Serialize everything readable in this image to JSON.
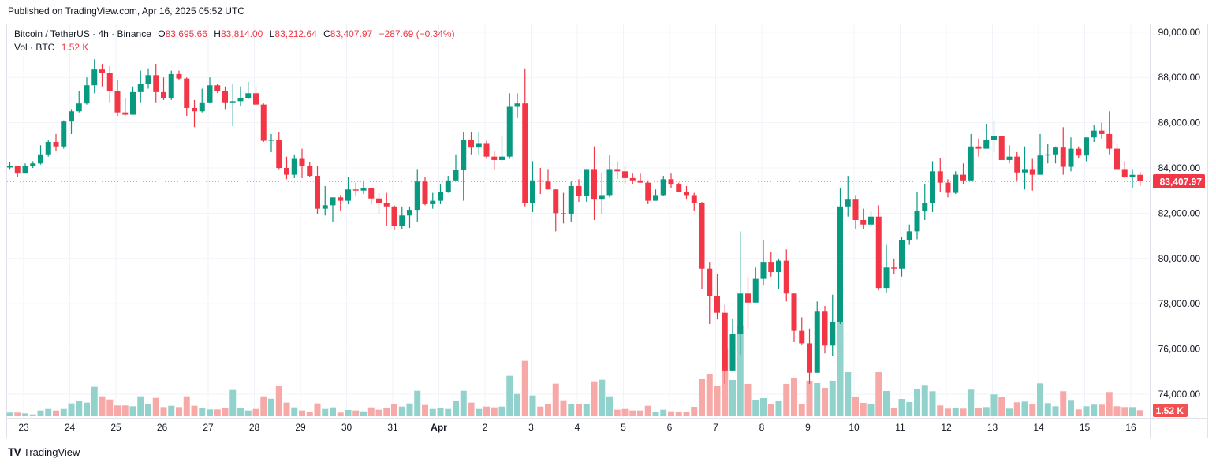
{
  "header": {
    "published": "Published on TradingView.com, Apr 16, 2025 05:52 UTC"
  },
  "legend": {
    "symbol": "Bitcoin / TetherUS · 4h · Binance",
    "o_label": "O",
    "o_value": "83,695.66",
    "h_label": "H",
    "h_value": "83,814.00",
    "l_label": "L",
    "l_value": "83,212.64",
    "c_label": "C",
    "c_value": "83,407.97",
    "change": "−287.69 (−0.34%)",
    "vol_label": "Vol · BTC",
    "vol_value": "1.52 K"
  },
  "footer": {
    "brand": "TradingView",
    "logo_glyph": "TV"
  },
  "colors": {
    "up": "#089981",
    "down": "#F23645",
    "vol_up": "#92D2CC",
    "vol_down": "#F7A9A7",
    "price_label": "#F23645",
    "vol_label": "#F05252"
  },
  "chart_data": {
    "type": "candlestick",
    "interval": "4h",
    "y_ticks": [
      74000,
      76000,
      78000,
      80000,
      82000,
      84000,
      86000,
      88000,
      90000
    ],
    "y_tick_labels": [
      "74,000.00",
      "76,000.00",
      "78,000.00",
      "80,000.00",
      "82,000.00",
      "84,000.00",
      "86,000.00",
      "88,000.00",
      "90,000.00"
    ],
    "x_tick_labels": [
      "23",
      "24",
      "25",
      "26",
      "27",
      "28",
      "29",
      "30",
      "31",
      "Apr",
      "2",
      "3",
      "4",
      "5",
      "6",
      "7",
      "8",
      "9",
      "10",
      "11",
      "12",
      "13",
      "14",
      "15",
      "16"
    ],
    "last_price": 83407.97,
    "last_price_label": "83,407.97",
    "last_volume_label": "1.52 K",
    "grid": true,
    "ohlc": [
      [
        84020,
        84250,
        83950,
        84080
      ],
      [
        84080,
        84100,
        83600,
        83750
      ],
      [
        83750,
        84200,
        83750,
        84100
      ],
      [
        84100,
        84300,
        84000,
        84200
      ],
      [
        84200,
        85000,
        84150,
        84600
      ],
      [
        84600,
        85250,
        84500,
        85150
      ],
      [
        85150,
        85500,
        84750,
        84950
      ],
      [
        84950,
        86100,
        84850,
        86050
      ],
      [
        86050,
        86600,
        85500,
        86500
      ],
      [
        86500,
        87400,
        86450,
        86850
      ],
      [
        86850,
        88000,
        86800,
        87650
      ],
      [
        87650,
        88800,
        87300,
        88350
      ],
      [
        88350,
        88600,
        87600,
        88200
      ],
      [
        88200,
        88500,
        86900,
        87400
      ],
      [
        87400,
        87900,
        86300,
        86450
      ],
      [
        86450,
        87100,
        86300,
        86350
      ],
      [
        86350,
        87600,
        86350,
        87350
      ],
      [
        87350,
        88300,
        86900,
        87700
      ],
      [
        87700,
        88400,
        87500,
        88100
      ],
      [
        88100,
        88600,
        86900,
        87350
      ],
      [
        87350,
        88000,
        87000,
        87100
      ],
      [
        87100,
        88300,
        87000,
        88150
      ],
      [
        88150,
        88300,
        87900,
        87950
      ],
      [
        87950,
        88000,
        86300,
        86650
      ],
      [
        86650,
        87000,
        85800,
        86500
      ],
      [
        86500,
        87500,
        86450,
        86900
      ],
      [
        86900,
        88000,
        86850,
        87650
      ],
      [
        87650,
        87700,
        87300,
        87400
      ],
      [
        87400,
        87600,
        86600,
        86900
      ],
      [
        86900,
        87700,
        85850,
        86950
      ],
      [
        86950,
        87600,
        86750,
        87100
      ],
      [
        87100,
        87800,
        87050,
        87300
      ],
      [
        87300,
        87600,
        86750,
        86800
      ],
      [
        86800,
        86850,
        85150,
        85200
      ],
      [
        85200,
        85500,
        84700,
        85250
      ],
      [
        85250,
        85600,
        83950,
        84000
      ],
      [
        84000,
        84500,
        83500,
        83700
      ],
      [
        83700,
        84600,
        83550,
        84400
      ],
      [
        84400,
        84850,
        83550,
        84100
      ],
      [
        84100,
        84250,
        83600,
        83650
      ],
      [
        83650,
        84100,
        81950,
        82200
      ],
      [
        82200,
        83200,
        81900,
        82350
      ],
      [
        82350,
        82700,
        81600,
        82700
      ],
      [
        82700,
        82800,
        82100,
        82550
      ],
      [
        82550,
        83600,
        82400,
        83050
      ],
      [
        83050,
        83350,
        82750,
        83000
      ],
      [
        83000,
        83450,
        82850,
        83100
      ],
      [
        83100,
        83100,
        82400,
        82650
      ],
      [
        82650,
        82900,
        81950,
        82450
      ],
      [
        82450,
        82900,
        81450,
        82300
      ],
      [
        82300,
        82350,
        81250,
        81450
      ],
      [
        81450,
        82300,
        81300,
        81900
      ],
      [
        81900,
        82300,
        81350,
        82150
      ],
      [
        82150,
        83950,
        81600,
        83400
      ],
      [
        83400,
        83600,
        82350,
        82400
      ],
      [
        82400,
        82900,
        82200,
        82550
      ],
      [
        82550,
        83300,
        82400,
        82950
      ],
      [
        82950,
        83650,
        82900,
        83450
      ],
      [
        83450,
        84600,
        83400,
        83900
      ],
      [
        83900,
        85600,
        82550,
        85250
      ],
      [
        85250,
        85600,
        84600,
        84900
      ],
      [
        84900,
        85600,
        84600,
        85100
      ],
      [
        85100,
        85200,
        84400,
        84500
      ],
      [
        84500,
        84750,
        83900,
        84350
      ],
      [
        84350,
        85400,
        84300,
        84500
      ],
      [
        84500,
        87300,
        84400,
        86700
      ],
      [
        86700,
        87300,
        86200,
        86850
      ],
      [
        86850,
        88400,
        82300,
        82450
      ],
      [
        82450,
        84300,
        82050,
        83450
      ],
      [
        83450,
        84000,
        82850,
        83400
      ],
      [
        83400,
        83950,
        83050,
        83050
      ],
      [
        83050,
        83050,
        81200,
        82000
      ],
      [
        82000,
        82900,
        81550,
        81980
      ],
      [
        81980,
        83400,
        81600,
        83200
      ],
      [
        83200,
        83500,
        82500,
        82750
      ],
      [
        82750,
        83950,
        82500,
        83950
      ],
      [
        83950,
        84950,
        81700,
        82600
      ],
      [
        82600,
        83800,
        81950,
        82800
      ],
      [
        82800,
        84550,
        82700,
        83950
      ],
      [
        83950,
        84300,
        83500,
        83850
      ],
      [
        83850,
        84100,
        83300,
        83550
      ],
      [
        83550,
        83750,
        83300,
        83450
      ],
      [
        83450,
        83750,
        83350,
        83350
      ],
      [
        83350,
        83450,
        82400,
        82550
      ],
      [
        82550,
        83050,
        82550,
        82800
      ],
      [
        82800,
        83650,
        82750,
        83500
      ],
      [
        83500,
        83750,
        83100,
        83300
      ],
      [
        83300,
        83350,
        82950,
        82950
      ],
      [
        82950,
        83200,
        82600,
        82800
      ],
      [
        82800,
        82900,
        82100,
        82450
      ],
      [
        82450,
        82500,
        78650,
        79550
      ],
      [
        79550,
        79850,
        77100,
        78350
      ],
      [
        78350,
        79300,
        77300,
        77600
      ],
      [
        77600,
        77950,
        74450,
        75050
      ],
      [
        75050,
        77350,
        75050,
        76650
      ],
      [
        76650,
        81200,
        75750,
        78450
      ],
      [
        78450,
        79200,
        76900,
        78050
      ],
      [
        78050,
        79600,
        78050,
        79100
      ],
      [
        79100,
        80800,
        78800,
        79850
      ],
      [
        79850,
        80300,
        79200,
        79400
      ],
      [
        79400,
        80000,
        78650,
        79900
      ],
      [
        79900,
        80400,
        78100,
        78450
      ],
      [
        78450,
        78450,
        76300,
        76800
      ],
      [
        76800,
        77400,
        76200,
        76250
      ],
      [
        76250,
        76900,
        74450,
        74950
      ],
      [
        74950,
        78100,
        74950,
        77650
      ],
      [
        77650,
        77900,
        75800,
        76150
      ],
      [
        76150,
        78400,
        75700,
        77200
      ],
      [
        77200,
        83100,
        77100,
        82300
      ],
      [
        82300,
        83650,
        81850,
        82600
      ],
      [
        82600,
        82800,
        81300,
        81700
      ],
      [
        81700,
        82200,
        81300,
        81500
      ],
      [
        81500,
        82100,
        81400,
        81850
      ],
      [
        81850,
        82350,
        78600,
        78700
      ],
      [
        78700,
        80600,
        78500,
        79600
      ],
      [
        79600,
        80000,
        79300,
        79550
      ],
      [
        79550,
        80950,
        79200,
        80800
      ],
      [
        80800,
        81500,
        80600,
        81200
      ],
      [
        81200,
        82950,
        80850,
        82100
      ],
      [
        82100,
        83300,
        81700,
        82450
      ],
      [
        82450,
        84300,
        82050,
        83850
      ],
      [
        83850,
        84450,
        82950,
        83350
      ],
      [
        83350,
        83500,
        82700,
        82900
      ],
      [
        82900,
        83850,
        82850,
        83700
      ],
      [
        83700,
        84200,
        83300,
        83450
      ],
      [
        83450,
        85500,
        83450,
        84950
      ],
      [
        84950,
        85300,
        84500,
        84850
      ],
      [
        84850,
        85950,
        84850,
        85250
      ],
      [
        85250,
        86050,
        84700,
        85400
      ],
      [
        85400,
        85400,
        84350,
        84350
      ],
      [
        84350,
        85000,
        84200,
        84500
      ],
      [
        84500,
        84700,
        83450,
        83800
      ],
      [
        83800,
        84950,
        83050,
        83950
      ],
      [
        83950,
        84400,
        83000,
        83700
      ],
      [
        83700,
        85500,
        83700,
        84550
      ],
      [
        84550,
        85050,
        84200,
        84600
      ],
      [
        84600,
        84950,
        84200,
        84900
      ],
      [
        84900,
        85800,
        83700,
        84050
      ],
      [
        84050,
        85350,
        83850,
        84850
      ],
      [
        84850,
        84950,
        84450,
        84550
      ],
      [
        84550,
        85350,
        84300,
        85350
      ],
      [
        85350,
        85900,
        85150,
        85650
      ],
      [
        85650,
        86000,
        85300,
        85500
      ],
      [
        85500,
        86500,
        84600,
        84850
      ],
      [
        84850,
        85100,
        83900,
        83950
      ],
      [
        83950,
        84300,
        83550,
        83600
      ],
      [
        83600,
        83950,
        83100,
        83695.66
      ],
      [
        83695.66,
        83814.0,
        83212.64,
        83407.97
      ]
    ],
    "volume_k": [
      0.93,
      0.93,
      0.73,
      0.45,
      1.44,
      1.83,
      1.44,
      1.83,
      3.21,
      3.8,
      3.41,
      7.35,
      4.98,
      4.2,
      2.7,
      2.7,
      2.5,
      4.98,
      3.01,
      4.59,
      2.3,
      2.62,
      2.3,
      4.98,
      2.62,
      2.03,
      1.71,
      1.71,
      2.03,
      6.76,
      2.03,
      1.44,
      1.83,
      4.98,
      4.39,
      7.55,
      3.41,
      2.23,
      1.44,
      1.04,
      3.21,
      1.83,
      2.23,
      0.93,
      1.58,
      1.44,
      1.24,
      2.23,
      1.64,
      2.03,
      3.01,
      2.42,
      3.21,
      6.36,
      2.82,
      1.83,
      2.03,
      1.83,
      3.8,
      6.36,
      3.41,
      1.83,
      2.42,
      2.23,
      2.42,
      10.11,
      5.58,
      13.85,
      5.18,
      2.42,
      3.01,
      8.14,
      4.0,
      3.01,
      3.01,
      3.01,
      8.73,
      9.12,
      4.98,
      1.64,
      1.83,
      1.44,
      1.44,
      2.62,
      1.04,
      1.64,
      1.24,
      1.18,
      1.18,
      2.36,
      9.26,
      10.64,
      7.49,
      16.94,
      9.06,
      22.66,
      8.08,
      4.14,
      4.53,
      3.15,
      3.94,
      8.08,
      9.65,
      2.96,
      8.87,
      8.27,
      7.09,
      8.87,
      23.44,
      11.03,
      4.93,
      3.35,
      2.96,
      11.03,
      6.3,
      1.97,
      4.33,
      3.55,
      6.9,
      7.82,
      6.24,
      2.7,
      1.91,
      2.11,
      1.91,
      6.84,
      2.11,
      2.3,
      5.46,
      4.87,
      1.91,
      3.49,
      3.68,
      3.09,
      8.21,
      3.29,
      2.5,
      6.24,
      4.08,
      1.71,
      2.5,
      2.9,
      2.9,
      6.05,
      2.5,
      2.3,
      2.3,
      1.52
    ]
  }
}
